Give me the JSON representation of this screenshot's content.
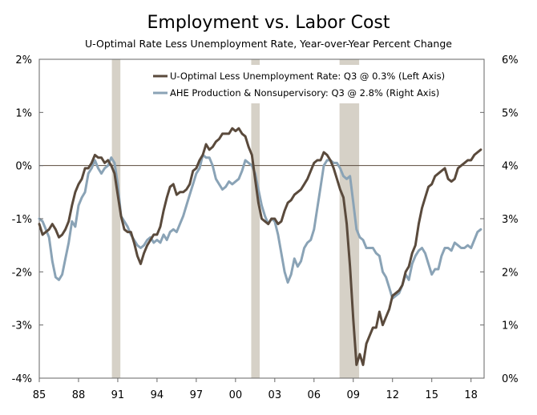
{
  "chart_data": {
    "type": "line",
    "title": "Employment vs. Labor Cost",
    "subtitle": "U-Optimal Rate Less Unemployment Rate, Year-over-Year Percent Change",
    "x_ticks": [
      "85",
      "88",
      "91",
      "94",
      "97",
      "00",
      "03",
      "06",
      "09",
      "12",
      "15",
      "18"
    ],
    "x_range": [
      1985,
      2019
    ],
    "left_axis": {
      "range": [
        -4,
        2
      ],
      "ticks": [
        "2%",
        "1%",
        "0%",
        "-1%",
        "-2%",
        "-3%",
        "-4%"
      ],
      "tick_values": [
        2,
        1,
        0,
        -1,
        -2,
        -3,
        -4
      ]
    },
    "right_axis": {
      "range": [
        0,
        6
      ],
      "ticks": [
        "6%",
        "5%",
        "4%",
        "3%",
        "2%",
        "1%",
        "0%"
      ],
      "tick_values": [
        6,
        5,
        4,
        3,
        2,
        1,
        0
      ]
    },
    "zero_line": 0,
    "recessions": [
      [
        1990.55,
        1991.2
      ],
      [
        2001.2,
        2001.85
      ],
      [
        2007.95,
        2009.45
      ]
    ],
    "series": [
      {
        "name": "U-Optimal Less Unemployment Rate: Q3 @ 0.3% (Left Axis)",
        "axis": "left",
        "color": "#5a4a3c",
        "points": [
          [
            1985.0,
            -1.1
          ],
          [
            1985.25,
            -1.3
          ],
          [
            1985.5,
            -1.25
          ],
          [
            1985.75,
            -1.2
          ],
          [
            1986.0,
            -1.1
          ],
          [
            1986.25,
            -1.2
          ],
          [
            1986.5,
            -1.35
          ],
          [
            1986.75,
            -1.3
          ],
          [
            1987.0,
            -1.2
          ],
          [
            1987.25,
            -1.05
          ],
          [
            1987.5,
            -0.75
          ],
          [
            1987.75,
            -0.5
          ],
          [
            1988.0,
            -0.35
          ],
          [
            1988.25,
            -0.25
          ],
          [
            1988.5,
            -0.05
          ],
          [
            1988.75,
            -0.05
          ],
          [
            1989.0,
            0.05
          ],
          [
            1989.25,
            0.2
          ],
          [
            1989.5,
            0.15
          ],
          [
            1989.75,
            0.15
          ],
          [
            1990.0,
            0.05
          ],
          [
            1990.25,
            0.1
          ],
          [
            1990.5,
            0.0
          ],
          [
            1990.75,
            -0.15
          ],
          [
            1991.0,
            -0.55
          ],
          [
            1991.25,
            -0.95
          ],
          [
            1991.5,
            -1.2
          ],
          [
            1991.75,
            -1.25
          ],
          [
            1992.0,
            -1.25
          ],
          [
            1992.25,
            -1.45
          ],
          [
            1992.5,
            -1.7
          ],
          [
            1992.75,
            -1.85
          ],
          [
            1993.0,
            -1.65
          ],
          [
            1993.25,
            -1.5
          ],
          [
            1993.5,
            -1.4
          ],
          [
            1993.75,
            -1.3
          ],
          [
            1994.0,
            -1.3
          ],
          [
            1994.25,
            -1.15
          ],
          [
            1994.5,
            -0.85
          ],
          [
            1994.75,
            -0.6
          ],
          [
            1995.0,
            -0.4
          ],
          [
            1995.25,
            -0.35
          ],
          [
            1995.5,
            -0.55
          ],
          [
            1995.75,
            -0.5
          ],
          [
            1996.0,
            -0.5
          ],
          [
            1996.25,
            -0.45
          ],
          [
            1996.5,
            -0.35
          ],
          [
            1996.75,
            -0.1
          ],
          [
            1997.0,
            -0.05
          ],
          [
            1997.25,
            0.1
          ],
          [
            1997.5,
            0.2
          ],
          [
            1997.75,
            0.4
          ],
          [
            1998.0,
            0.3
          ],
          [
            1998.25,
            0.35
          ],
          [
            1998.5,
            0.45
          ],
          [
            1998.75,
            0.5
          ],
          [
            1999.0,
            0.6
          ],
          [
            1999.25,
            0.6
          ],
          [
            1999.5,
            0.6
          ],
          [
            1999.75,
            0.7
          ],
          [
            2000.0,
            0.65
          ],
          [
            2000.25,
            0.7
          ],
          [
            2000.5,
            0.6
          ],
          [
            2000.75,
            0.55
          ],
          [
            2001.0,
            0.35
          ],
          [
            2001.25,
            0.2
          ],
          [
            2001.5,
            -0.25
          ],
          [
            2001.75,
            -0.7
          ],
          [
            2002.0,
            -1.0
          ],
          [
            2002.25,
            -1.05
          ],
          [
            2002.5,
            -1.1
          ],
          [
            2002.75,
            -1.0
          ],
          [
            2003.0,
            -1.0
          ],
          [
            2003.25,
            -1.1
          ],
          [
            2003.5,
            -1.05
          ],
          [
            2003.75,
            -0.85
          ],
          [
            2004.0,
            -0.7
          ],
          [
            2004.25,
            -0.65
          ],
          [
            2004.5,
            -0.55
          ],
          [
            2004.75,
            -0.5
          ],
          [
            2005.0,
            -0.45
          ],
          [
            2005.25,
            -0.35
          ],
          [
            2005.5,
            -0.25
          ],
          [
            2005.75,
            -0.1
          ],
          [
            2006.0,
            0.05
          ],
          [
            2006.25,
            0.1
          ],
          [
            2006.5,
            0.1
          ],
          [
            2006.75,
            0.25
          ],
          [
            2007.0,
            0.2
          ],
          [
            2007.25,
            0.1
          ],
          [
            2007.5,
            -0.05
          ],
          [
            2007.75,
            -0.25
          ],
          [
            2008.0,
            -0.45
          ],
          [
            2008.25,
            -0.6
          ],
          [
            2008.5,
            -1.1
          ],
          [
            2008.75,
            -1.9
          ],
          [
            2009.0,
            -2.9
          ],
          [
            2009.25,
            -3.75
          ],
          [
            2009.5,
            -3.55
          ],
          [
            2009.75,
            -3.75
          ],
          [
            2010.0,
            -3.35
          ],
          [
            2010.25,
            -3.2
          ],
          [
            2010.5,
            -3.05
          ],
          [
            2010.75,
            -3.05
          ],
          [
            2011.0,
            -2.75
          ],
          [
            2011.25,
            -3.0
          ],
          [
            2011.5,
            -2.85
          ],
          [
            2011.75,
            -2.7
          ],
          [
            2012.0,
            -2.45
          ],
          [
            2012.25,
            -2.4
          ],
          [
            2012.5,
            -2.35
          ],
          [
            2012.75,
            -2.25
          ],
          [
            2013.0,
            -2.0
          ],
          [
            2013.25,
            -1.9
          ],
          [
            2013.5,
            -1.65
          ],
          [
            2013.75,
            -1.5
          ],
          [
            2014.0,
            -1.1
          ],
          [
            2014.25,
            -0.8
          ],
          [
            2014.5,
            -0.6
          ],
          [
            2014.75,
            -0.4
          ],
          [
            2015.0,
            -0.35
          ],
          [
            2015.25,
            -0.2
          ],
          [
            2015.5,
            -0.15
          ],
          [
            2015.75,
            -0.1
          ],
          [
            2016.0,
            -0.05
          ],
          [
            2016.25,
            -0.25
          ],
          [
            2016.5,
            -0.3
          ],
          [
            2016.75,
            -0.25
          ],
          [
            2017.0,
            -0.05
          ],
          [
            2017.25,
            0.0
          ],
          [
            2017.5,
            0.05
          ],
          [
            2017.75,
            0.1
          ],
          [
            2018.0,
            0.1
          ],
          [
            2018.25,
            0.2
          ],
          [
            2018.5,
            0.25
          ],
          [
            2018.75,
            0.3
          ]
        ]
      },
      {
        "name": "AHE Production & Nonsupervisory: Q3 @ 2.8% (Right Axis)",
        "axis": "right",
        "color": "#8aa3b6",
        "points": [
          [
            1985.0,
            3.0
          ],
          [
            1985.25,
            2.95
          ],
          [
            1985.5,
            2.8
          ],
          [
            1985.75,
            2.65
          ],
          [
            1986.0,
            2.2
          ],
          [
            1986.25,
            1.9
          ],
          [
            1986.5,
            1.85
          ],
          [
            1986.75,
            1.95
          ],
          [
            1987.0,
            2.25
          ],
          [
            1987.25,
            2.55
          ],
          [
            1987.5,
            2.95
          ],
          [
            1987.75,
            2.85
          ],
          [
            1988.0,
            3.25
          ],
          [
            1988.25,
            3.4
          ],
          [
            1988.5,
            3.5
          ],
          [
            1988.75,
            3.85
          ],
          [
            1989.0,
            3.95
          ],
          [
            1989.25,
            4.1
          ],
          [
            1989.5,
            3.95
          ],
          [
            1989.75,
            3.85
          ],
          [
            1990.0,
            3.95
          ],
          [
            1990.25,
            4.0
          ],
          [
            1990.5,
            4.15
          ],
          [
            1990.75,
            4.05
          ],
          [
            1991.0,
            3.65
          ],
          [
            1991.25,
            3.05
          ],
          [
            1991.5,
            2.95
          ],
          [
            1991.75,
            2.85
          ],
          [
            1992.0,
            2.7
          ],
          [
            1992.25,
            2.6
          ],
          [
            1992.5,
            2.5
          ],
          [
            1992.75,
            2.45
          ],
          [
            1993.0,
            2.5
          ],
          [
            1993.25,
            2.6
          ],
          [
            1993.5,
            2.65
          ],
          [
            1993.75,
            2.55
          ],
          [
            1994.0,
            2.6
          ],
          [
            1994.25,
            2.55
          ],
          [
            1994.5,
            2.7
          ],
          [
            1994.75,
            2.6
          ],
          [
            1995.0,
            2.75
          ],
          [
            1995.25,
            2.8
          ],
          [
            1995.5,
            2.75
          ],
          [
            1995.75,
            2.9
          ],
          [
            1996.0,
            3.05
          ],
          [
            1996.25,
            3.25
          ],
          [
            1996.5,
            3.45
          ],
          [
            1996.75,
            3.65
          ],
          [
            1997.0,
            3.85
          ],
          [
            1997.25,
            3.95
          ],
          [
            1997.5,
            4.2
          ],
          [
            1997.75,
            4.15
          ],
          [
            1998.0,
            4.15
          ],
          [
            1998.25,
            4.0
          ],
          [
            1998.5,
            3.75
          ],
          [
            1998.75,
            3.65
          ],
          [
            1999.0,
            3.55
          ],
          [
            1999.25,
            3.6
          ],
          [
            1999.5,
            3.7
          ],
          [
            1999.75,
            3.65
          ],
          [
            2000.0,
            3.7
          ],
          [
            2000.25,
            3.75
          ],
          [
            2000.5,
            3.9
          ],
          [
            2000.75,
            4.1
          ],
          [
            2001.0,
            4.05
          ],
          [
            2001.25,
            4.0
          ],
          [
            2001.5,
            3.85
          ],
          [
            2001.75,
            3.55
          ],
          [
            2002.0,
            3.25
          ],
          [
            2002.25,
            3.05
          ],
          [
            2002.5,
            2.9
          ],
          [
            2002.75,
            3.0
          ],
          [
            2003.0,
            2.95
          ],
          [
            2003.25,
            2.7
          ],
          [
            2003.5,
            2.35
          ],
          [
            2003.75,
            2.0
          ],
          [
            2004.0,
            1.8
          ],
          [
            2004.25,
            1.95
          ],
          [
            2004.5,
            2.25
          ],
          [
            2004.75,
            2.1
          ],
          [
            2005.0,
            2.2
          ],
          [
            2005.25,
            2.45
          ],
          [
            2005.5,
            2.55
          ],
          [
            2005.75,
            2.6
          ],
          [
            2006.0,
            2.8
          ],
          [
            2006.25,
            3.2
          ],
          [
            2006.5,
            3.6
          ],
          [
            2006.75,
            4.0
          ],
          [
            2007.0,
            4.1
          ],
          [
            2007.25,
            4.1
          ],
          [
            2007.5,
            4.05
          ],
          [
            2007.75,
            4.05
          ],
          [
            2008.0,
            3.95
          ],
          [
            2008.25,
            3.8
          ],
          [
            2008.5,
            3.75
          ],
          [
            2008.75,
            3.8
          ],
          [
            2009.0,
            3.3
          ],
          [
            2009.25,
            2.8
          ],
          [
            2009.5,
            2.65
          ],
          [
            2009.75,
            2.6
          ],
          [
            2010.0,
            2.45
          ],
          [
            2010.25,
            2.45
          ],
          [
            2010.5,
            2.45
          ],
          [
            2010.75,
            2.35
          ],
          [
            2011.0,
            2.3
          ],
          [
            2011.25,
            2.0
          ],
          [
            2011.5,
            1.9
          ],
          [
            2011.75,
            1.7
          ],
          [
            2012.0,
            1.5
          ],
          [
            2012.25,
            1.55
          ],
          [
            2012.5,
            1.6
          ],
          [
            2012.75,
            1.75
          ],
          [
            2013.0,
            1.95
          ],
          [
            2013.25,
            1.85
          ],
          [
            2013.5,
            2.15
          ],
          [
            2013.75,
            2.3
          ],
          [
            2014.0,
            2.4
          ],
          [
            2014.25,
            2.45
          ],
          [
            2014.5,
            2.35
          ],
          [
            2014.75,
            2.15
          ],
          [
            2015.0,
            1.95
          ],
          [
            2015.25,
            2.05
          ],
          [
            2015.5,
            2.05
          ],
          [
            2015.75,
            2.3
          ],
          [
            2016.0,
            2.45
          ],
          [
            2016.25,
            2.45
          ],
          [
            2016.5,
            2.4
          ],
          [
            2016.75,
            2.55
          ],
          [
            2017.0,
            2.5
          ],
          [
            2017.25,
            2.45
          ],
          [
            2017.5,
            2.45
          ],
          [
            2017.75,
            2.5
          ],
          [
            2018.0,
            2.45
          ],
          [
            2018.25,
            2.6
          ],
          [
            2018.5,
            2.75
          ],
          [
            2018.75,
            2.8
          ]
        ]
      }
    ]
  }
}
